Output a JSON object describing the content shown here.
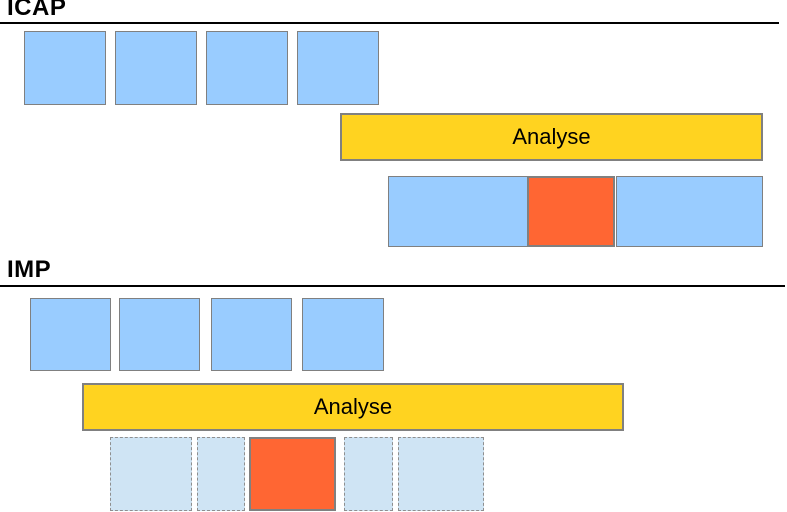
{
  "colors": {
    "canvas_bg": "#ffffff",
    "block_blue": "#99ccff",
    "block_border": "#808080",
    "bar_yellow": "#ffd320",
    "highlight_orange": "#ff6633",
    "ghost_fill": "#cfe4f4",
    "ghost_border": "#8f8f8f",
    "rule_black": "#000000",
    "text_black": "#000000"
  },
  "sections": [
    {
      "title": "ICAP",
      "analyse_label": "Analyse",
      "input_blocks": [
        {
          "kind": "sample",
          "border": "solid"
        },
        {
          "kind": "sample",
          "border": "solid"
        },
        {
          "kind": "sample",
          "border": "solid"
        },
        {
          "kind": "sample",
          "border": "solid"
        }
      ],
      "result_blocks": [
        {
          "kind": "normal",
          "border": "solid"
        },
        {
          "kind": "highlight",
          "border": "solid"
        },
        {
          "kind": "normal",
          "border": "solid"
        }
      ]
    },
    {
      "title": "IMP",
      "analyse_label": "Analyse",
      "input_blocks": [
        {
          "kind": "sample",
          "border": "solid"
        },
        {
          "kind": "sample",
          "border": "solid"
        },
        {
          "kind": "sample",
          "border": "solid"
        },
        {
          "kind": "sample",
          "border": "solid"
        }
      ],
      "result_blocks": [
        {
          "kind": "normal",
          "border": "dashed"
        },
        {
          "kind": "normal",
          "border": "dashed"
        },
        {
          "kind": "highlight",
          "border": "solid"
        },
        {
          "kind": "normal",
          "border": "dashed"
        },
        {
          "kind": "normal",
          "border": "dashed"
        }
      ]
    }
  ]
}
